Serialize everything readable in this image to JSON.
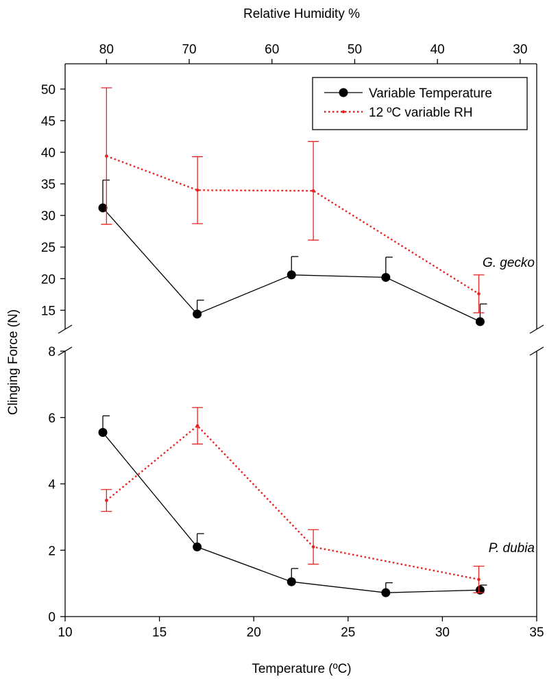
{
  "chart_data": {
    "type": "line",
    "xlabel": "Temperature  (ºC)",
    "x2label": "Relative Humidity %",
    "ylabel": "Clinging Force (N)",
    "xlim": [
      10,
      35
    ],
    "x2lim": [
      85,
      28
    ],
    "x_ticks": [
      10,
      15,
      20,
      25,
      30,
      35
    ],
    "x2_ticks": [
      80,
      70,
      60,
      50,
      40,
      30
    ],
    "y_broken_axis": true,
    "lower_panel": {
      "ylim": [
        0,
        8
      ],
      "y_ticks": [
        0,
        2,
        4,
        6,
        8
      ]
    },
    "upper_panel": {
      "ylim": [
        12,
        54
      ],
      "y_ticks": [
        15,
        20,
        25,
        30,
        35,
        40,
        45,
        50
      ]
    },
    "legend_position": "top-right",
    "series": [
      {
        "name": "Variable Temperature",
        "color": "#000000",
        "style": "solid",
        "marker": "circle",
        "axis": "temperature",
        "panels": {
          "upper": [
            {
              "x": 12,
              "y": 31.2,
              "err": 4.4
            },
            {
              "x": 17,
              "y": 14.4,
              "err": 2.2
            },
            {
              "x": 22,
              "y": 20.6,
              "err": 2.9
            },
            {
              "x": 27,
              "y": 20.2,
              "err": 3.2
            },
            {
              "x": 32,
              "y": 13.2,
              "err": 2.8
            }
          ],
          "lower": [
            {
              "x": 12,
              "y": 5.55,
              "err": 0.5
            },
            {
              "x": 17,
              "y": 2.1,
              "err": 0.4
            },
            {
              "x": 22,
              "y": 1.05,
              "err": 0.4
            },
            {
              "x": 27,
              "y": 0.72,
              "err": 0.3
            },
            {
              "x": 32,
              "y": 0.8,
              "err": 0.15
            }
          ]
        }
      },
      {
        "name": "12 ºC variable RH",
        "color": "#e8231f",
        "style": "dotted",
        "marker": "small-dot",
        "axis": "relative_humidity",
        "panels": {
          "upper": [
            {
              "x": 80,
              "y": 39.4,
              "err": 10.8
            },
            {
              "x": 69,
              "y": 34.0,
              "err": 5.3
            },
            {
              "x": 55,
              "y": 33.9,
              "err": 7.8
            },
            {
              "x": 35,
              "y": 17.6,
              "err": 3.0
            }
          ],
          "lower": [
            {
              "x": 80,
              "y": 3.5,
              "err": 0.33
            },
            {
              "x": 69,
              "y": 5.75,
              "err": 0.55
            },
            {
              "x": 55,
              "y": 2.1,
              "err": 0.52
            },
            {
              "x": 35,
              "y": 1.12,
              "err": 0.4
            }
          ]
        }
      }
    ],
    "annotations": [
      "G. gecko",
      "P. dubia"
    ]
  }
}
